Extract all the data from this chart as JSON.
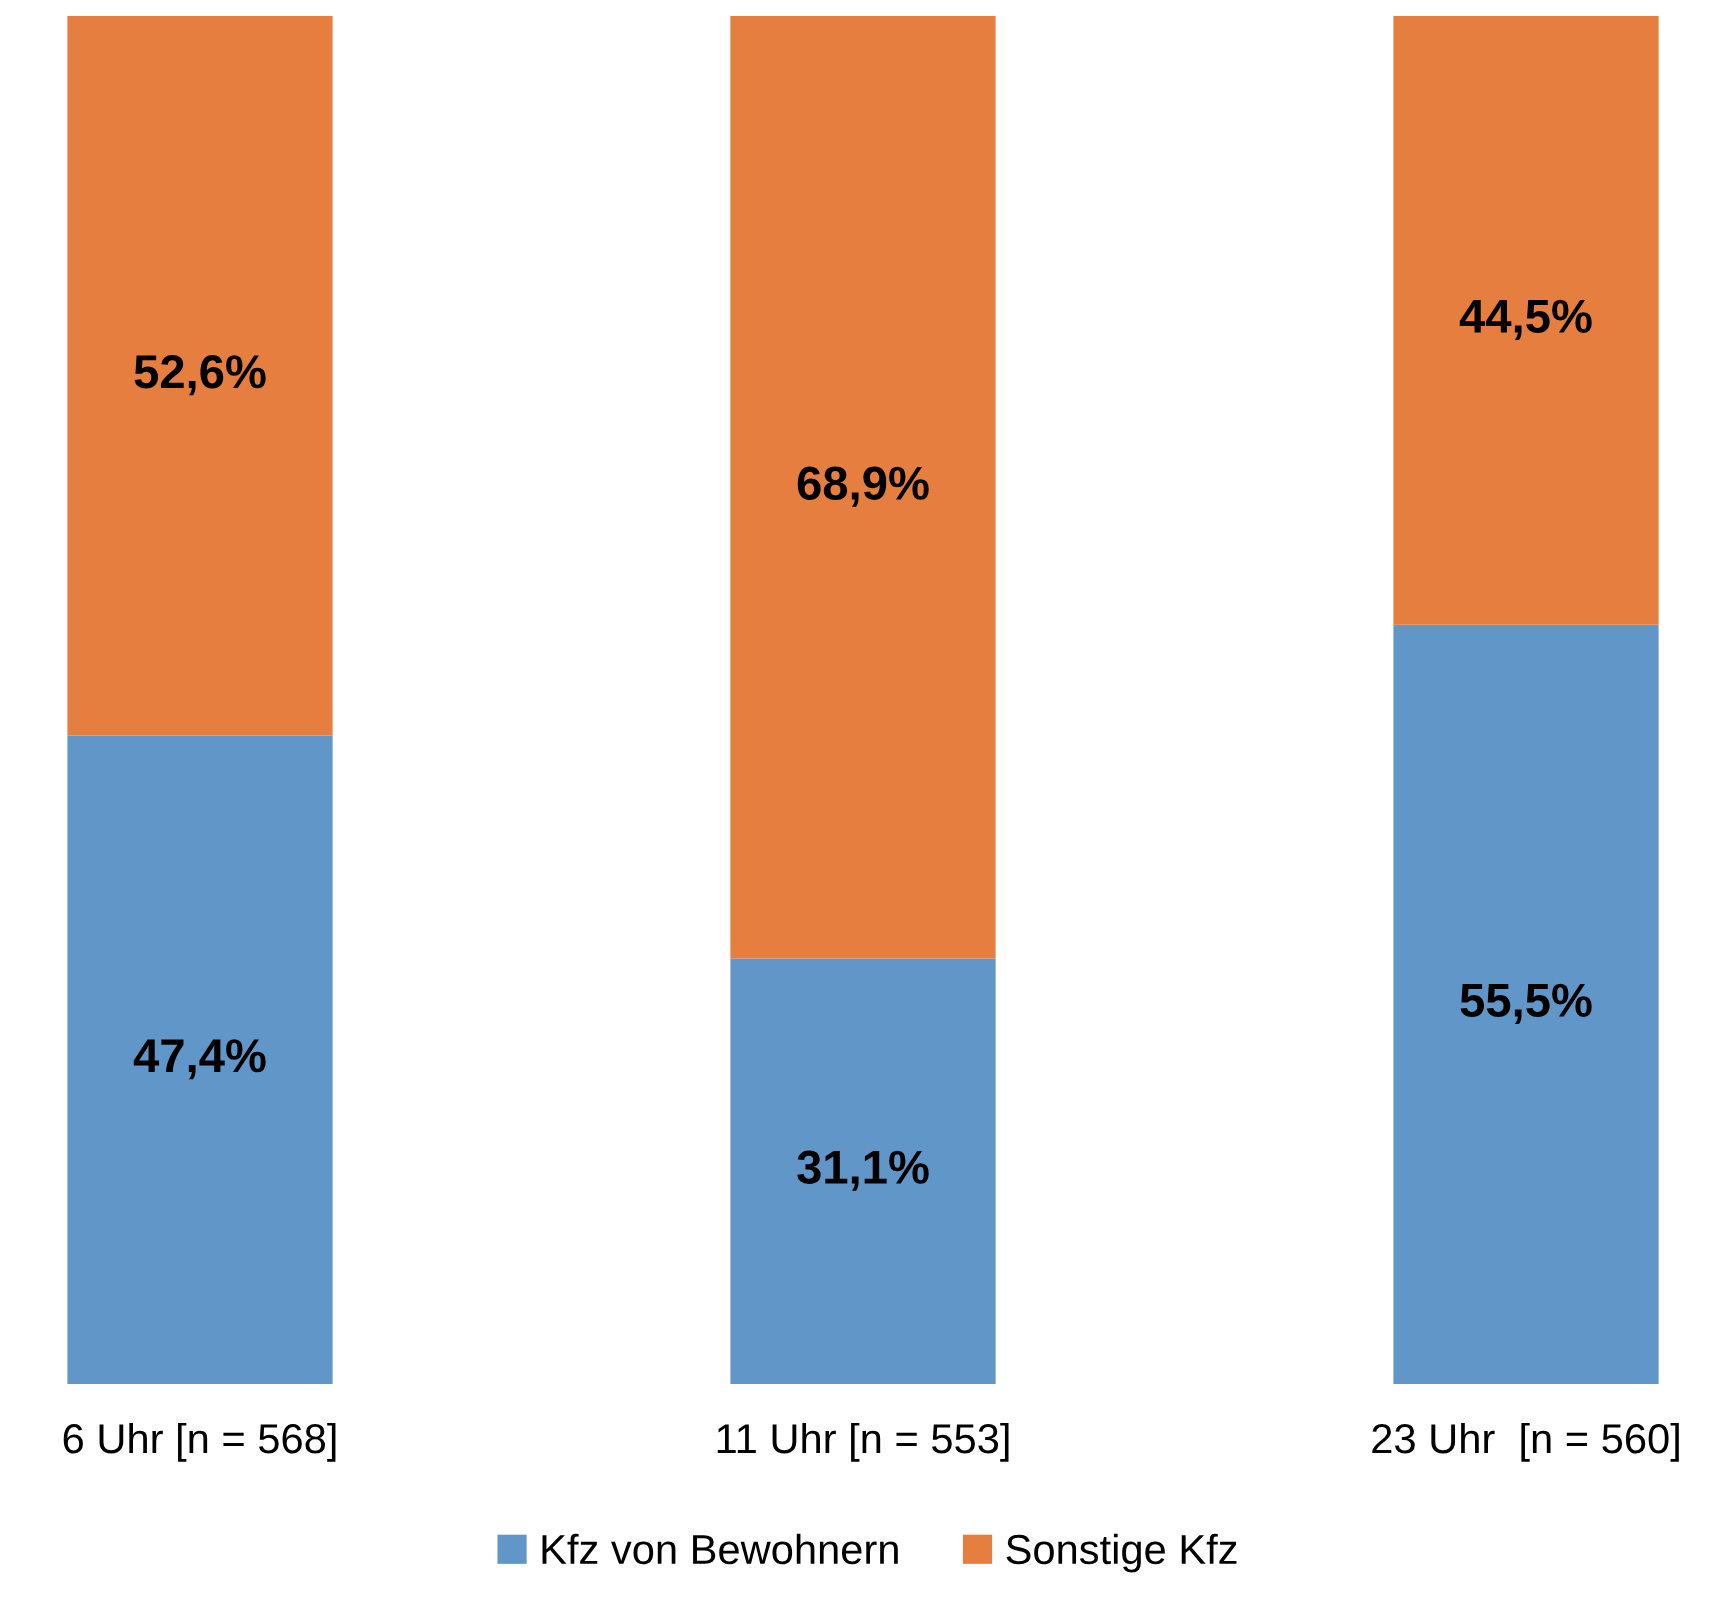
{
  "chart_data": {
    "type": "bar",
    "stacked": true,
    "categories": [
      "6 Uhr [n = 568]",
      "11 Uhr [n = 553]",
      "23 Uhr  [n = 560]"
    ],
    "series": [
      {
        "name": "Kfz von Bewohnern",
        "color": "#6096c8",
        "values": [
          47.4,
          31.1,
          55.5
        ],
        "value_labels": [
          "47,4%",
          "31,1%",
          "55,5%"
        ]
      },
      {
        "name": "Sonstige Kfz",
        "color": "#e57e3f",
        "values": [
          52.6,
          68.9,
          44.5
        ],
        "value_labels": [
          "52,6%",
          "68,9%",
          "44,5%"
        ]
      }
    ],
    "legend": "bottom"
  }
}
